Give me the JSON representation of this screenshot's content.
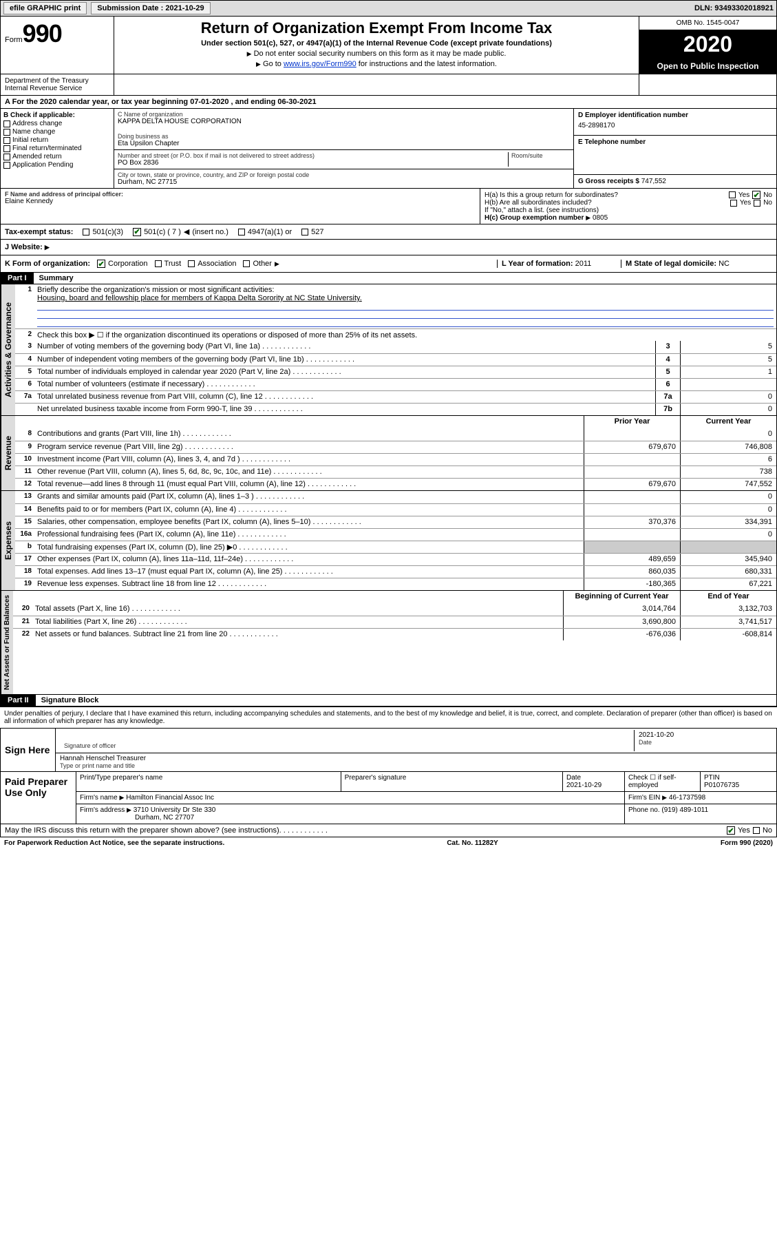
{
  "topbar": {
    "efile": "efile GRAPHIC print",
    "submission_label": "Submission Date : 2021-10-29",
    "dln": "DLN: 93493302018921"
  },
  "header": {
    "form_label": "Form",
    "form_no": "990",
    "title": "Return of Organization Exempt From Income Tax",
    "subtitle": "Under section 501(c), 527, or 4947(a)(1) of the Internal Revenue Code (except private foundations)",
    "nossn": "Do not enter social security numbers on this form as it may be made public.",
    "goto_pre": "Go to ",
    "goto_link": "www.irs.gov/Form990",
    "goto_post": " for instructions and the latest information.",
    "omb": "OMB No. 1545-0047",
    "year": "2020",
    "open_public": "Open to Public Inspection",
    "dept": "Department of the Treasury\nInternal Revenue Service"
  },
  "lineA": "For the 2020 calendar year, or tax year beginning 07-01-2020    , and ending 06-30-2021",
  "sectionB": {
    "title": "B Check if applicable:",
    "items": [
      "Address change",
      "Name change",
      "Initial return",
      "Final return/terminated",
      "Amended return",
      "Application Pending"
    ]
  },
  "orgblock": {
    "cname_lbl": "C Name of organization",
    "cname": "KAPPA DELTA HOUSE CORPORATION",
    "dba_lbl": "Doing business as",
    "dba": "Eta Upsilon Chapter",
    "addr_lbl": "Number and street (or P.O. box if mail is not delivered to street address)",
    "room_lbl": "Room/suite",
    "addr": "PO Box 2836",
    "city_lbl": "City or town, state or province, country, and ZIP or foreign postal code",
    "city": "Durham, NC  27715",
    "fname_lbl": "F Name and address of principal officer:",
    "fname": "Elaine Kennedy"
  },
  "rightblock": {
    "d_lbl": "D Employer identification number",
    "d_val": "45-2898170",
    "e_lbl": "E Telephone number",
    "g_lbl": "G Gross receipts $",
    "g_val": "747,552",
    "ha_lbl": "H(a)  Is this a group return for subordinates?",
    "hb_lbl": "H(b)  Are all subordinates included?",
    "hb_note": "If \"No,\" attach a list. (see instructions)",
    "hc_lbl": "H(c)  Group exemption number",
    "hc_val": "0805",
    "yes": "Yes",
    "no": "No"
  },
  "status": {
    "label": "Tax-exempt status:",
    "c3": "501(c)(3)",
    "c7": "501(c) ( 7 )",
    "insert": "(insert no.)",
    "a1": "4947(a)(1) or",
    "s527": "527"
  },
  "website": {
    "label": "J   Website:"
  },
  "krow": {
    "k": "K Form of organization:",
    "corp": "Corporation",
    "trust": "Trust",
    "assoc": "Association",
    "other": "Other",
    "l_lbl": "L Year of formation:",
    "l_val": "2011",
    "m_lbl": "M State of legal domicile:",
    "m_val": "NC"
  },
  "part1": {
    "tab": "Part I",
    "title": "Summary"
  },
  "summary": {
    "q1_lbl": "Briefly describe the organization's mission or most significant activities:",
    "q1_val": "Housing, board and fellowship place for members of Kappa Delta Sorority at NC State University.",
    "q2": "Check this box ▶ ☐  if the organization discontinued its operations or disposed of more than 25% of its net assets.",
    "lines": [
      {
        "n": "3",
        "t": "Number of voting members of the governing body (Part VI, line 1a)",
        "box": "3",
        "v": "5"
      },
      {
        "n": "4",
        "t": "Number of independent voting members of the governing body (Part VI, line 1b)",
        "box": "4",
        "v": "5"
      },
      {
        "n": "5",
        "t": "Total number of individuals employed in calendar year 2020 (Part V, line 2a)",
        "box": "5",
        "v": "1"
      },
      {
        "n": "6",
        "t": "Total number of volunteers (estimate if necessary)",
        "box": "6",
        "v": ""
      },
      {
        "n": "7a",
        "t": "Total unrelated business revenue from Part VIII, column (C), line 12",
        "box": "7a",
        "v": "0"
      },
      {
        "n": "",
        "t": "Net unrelated business taxable income from Form 990-T, line 39",
        "box": "7b",
        "v": "0"
      }
    ]
  },
  "rev": {
    "hdr_prior": "Prior Year",
    "hdr_curr": "Current Year",
    "rows": [
      {
        "n": "8",
        "t": "Contributions and grants (Part VIII, line 1h)",
        "p": "",
        "c": "0"
      },
      {
        "n": "9",
        "t": "Program service revenue (Part VIII, line 2g)",
        "p": "679,670",
        "c": "746,808"
      },
      {
        "n": "10",
        "t": "Investment income (Part VIII, column (A), lines 3, 4, and 7d )",
        "p": "",
        "c": "6"
      },
      {
        "n": "11",
        "t": "Other revenue (Part VIII, column (A), lines 5, 6d, 8c, 9c, 10c, and 11e)",
        "p": "",
        "c": "738"
      },
      {
        "n": "12",
        "t": "Total revenue—add lines 8 through 11 (must equal Part VIII, column (A), line 12)",
        "p": "679,670",
        "c": "747,552"
      }
    ]
  },
  "exp": {
    "rows": [
      {
        "n": "13",
        "t": "Grants and similar amounts paid (Part IX, column (A), lines 1–3 )",
        "p": "",
        "c": "0"
      },
      {
        "n": "14",
        "t": "Benefits paid to or for members (Part IX, column (A), line 4)",
        "p": "",
        "c": "0"
      },
      {
        "n": "15",
        "t": "Salaries, other compensation, employee benefits (Part IX, column (A), lines 5–10)",
        "p": "370,376",
        "c": "334,391"
      },
      {
        "n": "16a",
        "t": "Professional fundraising fees (Part IX, column (A), line 11e)",
        "p": "",
        "c": "0"
      },
      {
        "n": "b",
        "t": "Total fundraising expenses (Part IX, column (D), line 25) ▶0",
        "p": "grey",
        "c": "grey"
      },
      {
        "n": "17",
        "t": "Other expenses (Part IX, column (A), lines 11a–11d, 11f–24e)",
        "p": "489,659",
        "c": "345,940"
      },
      {
        "n": "18",
        "t": "Total expenses. Add lines 13–17 (must equal Part IX, column (A), line 25)",
        "p": "860,035",
        "c": "680,331"
      },
      {
        "n": "19",
        "t": "Revenue less expenses. Subtract line 18 from line 12",
        "p": "-180,365",
        "c": "67,221"
      }
    ]
  },
  "net": {
    "hdr_prior": "Beginning of Current Year",
    "hdr_curr": "End of Year",
    "rows": [
      {
        "n": "20",
        "t": "Total assets (Part X, line 16)",
        "p": "3,014,764",
        "c": "3,132,703"
      },
      {
        "n": "21",
        "t": "Total liabilities (Part X, line 26)",
        "p": "3,690,800",
        "c": "3,741,517"
      },
      {
        "n": "22",
        "t": "Net assets or fund balances. Subtract line 21 from line 20",
        "p": "-676,036",
        "c": "-608,814"
      }
    ]
  },
  "part2": {
    "tab": "Part II",
    "title": "Signature Block"
  },
  "sigdecl": "Under penalties of perjury, I declare that I have examined this return, including accompanying schedules and statements, and to the best of my knowledge and belief, it is true, correct, and complete. Declaration of preparer (other than officer) is based on all information of which preparer has any knowledge.",
  "sign": {
    "here": "Sign Here",
    "sig_lbl": "Signature of officer",
    "date_lbl": "Date",
    "date": "2021-10-20",
    "name": "Hannah Henschel  Treasurer",
    "name_lbl": "Type or print name and title"
  },
  "paid": {
    "title": "Paid Preparer Use Only",
    "pt_name_lbl": "Print/Type preparer's name",
    "psig_lbl": "Preparer's signature",
    "pdate_lbl": "Date",
    "pdate": "2021-10-29",
    "chkself": "Check ☐ if self-employed",
    "ptin_lbl": "PTIN",
    "ptin": "P01076735",
    "firm_lbl": "Firm's name",
    "firm": "Hamilton Financial Assoc Inc",
    "firmein_lbl": "Firm's EIN",
    "firmein": "46-1737598",
    "firmaddr_lbl": "Firm's address",
    "firmaddr1": "3710 University Dr Ste 330",
    "firmaddr2": "Durham, NC  27707",
    "phone_lbl": "Phone no.",
    "phone": "(919) 489-1011"
  },
  "irs_q": "May the IRS discuss this return with the preparer shown above? (see instructions)",
  "footer": {
    "pra": "For Paperwork Reduction Act Notice, see the separate instructions.",
    "cat": "Cat. No. 11282Y",
    "form": "Form 990 (2020)"
  },
  "vlabels": {
    "gov": "Activities & Governance",
    "rev": "Revenue",
    "exp": "Expenses",
    "net": "Net Assets or Fund Balances"
  }
}
